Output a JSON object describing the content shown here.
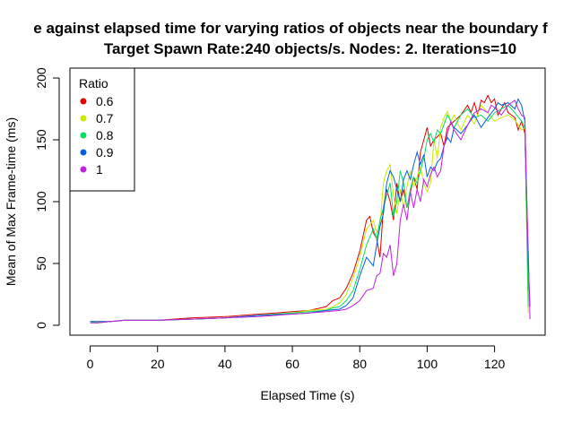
{
  "chart_data": {
    "type": "line",
    "title_line1": "e against elapsed time for varying ratios of objects near the boundary f",
    "title_line2": "Target Spawn Rate:240 objects/s. Nodes: 2. Iterations=10",
    "xlabel": "Elapsed Time (s)",
    "ylabel": "Mean of Max Frame-time (ms)",
    "xlim": [
      -6,
      135
    ],
    "ylim": [
      -8,
      208
    ],
    "xticks": [
      "0",
      "20",
      "40",
      "60",
      "80",
      "100",
      "120"
    ],
    "yticks": [
      "0",
      "50",
      "100",
      "150",
      "200"
    ],
    "legend": {
      "title": "Ratio",
      "position": "top-left"
    },
    "series": [
      {
        "name": "0.6",
        "color": "#e00000",
        "points": [
          [
            0,
            3
          ],
          [
            2,
            2
          ],
          [
            6,
            3
          ],
          [
            10,
            4
          ],
          [
            20,
            4
          ],
          [
            30,
            6
          ],
          [
            40,
            7
          ],
          [
            50,
            9
          ],
          [
            55,
            10
          ],
          [
            60,
            11
          ],
          [
            65,
            12
          ],
          [
            70,
            15
          ],
          [
            72,
            20
          ],
          [
            74,
            22
          ],
          [
            76,
            30
          ],
          [
            78,
            42
          ],
          [
            80,
            60
          ],
          [
            82,
            85
          ],
          [
            83,
            88
          ],
          [
            84,
            75
          ],
          [
            85,
            70
          ],
          [
            86,
            55
          ],
          [
            87,
            95
          ],
          [
            88,
            110
          ],
          [
            89,
            100
          ],
          [
            90,
            85
          ],
          [
            91,
            115
          ],
          [
            92,
            100
          ],
          [
            93,
            110
          ],
          [
            94,
            95
          ],
          [
            96,
            120
          ],
          [
            97,
            110
          ],
          [
            98,
            140
          ],
          [
            99,
            150
          ],
          [
            100,
            160
          ],
          [
            101,
            145
          ],
          [
            102,
            150
          ],
          [
            104,
            155
          ],
          [
            105,
            145
          ],
          [
            106,
            160
          ],
          [
            108,
            165
          ],
          [
            110,
            170
          ],
          [
            112,
            178
          ],
          [
            113,
            172
          ],
          [
            114,
            180
          ],
          [
            115,
            170
          ],
          [
            116,
            182
          ],
          [
            117,
            180
          ],
          [
            118,
            186
          ],
          [
            119,
            180
          ],
          [
            120,
            183
          ],
          [
            121,
            170
          ],
          [
            122,
            175
          ],
          [
            123,
            180
          ],
          [
            124,
            172
          ],
          [
            125,
            170
          ],
          [
            126,
            168
          ],
          [
            127,
            158
          ],
          [
            128,
            165
          ],
          [
            129,
            155
          ],
          [
            129.5,
            90
          ],
          [
            130,
            20
          ]
        ]
      },
      {
        "name": "0.7",
        "color": "#c8e800",
        "points": [
          [
            0,
            3
          ],
          [
            2,
            3
          ],
          [
            6,
            3
          ],
          [
            10,
            4
          ],
          [
            20,
            4
          ],
          [
            30,
            5
          ],
          [
            40,
            6
          ],
          [
            50,
            8
          ],
          [
            60,
            10
          ],
          [
            65,
            12
          ],
          [
            70,
            13
          ],
          [
            72,
            15
          ],
          [
            74,
            18
          ],
          [
            76,
            25
          ],
          [
            78,
            38
          ],
          [
            80,
            55
          ],
          [
            82,
            78
          ],
          [
            84,
            85
          ],
          [
            85,
            75
          ],
          [
            86,
            80
          ],
          [
            87,
            115
          ],
          [
            88,
            125
          ],
          [
            89,
            130
          ],
          [
            90,
            105
          ],
          [
            91,
            90
          ],
          [
            92,
            110
          ],
          [
            93,
            95
          ],
          [
            94,
            112
          ],
          [
            95,
            125
          ],
          [
            96,
            112
          ],
          [
            97,
            120
          ],
          [
            98,
            128
          ],
          [
            99,
            115
          ],
          [
            100,
            108
          ],
          [
            101,
            115
          ],
          [
            102,
            150
          ],
          [
            103,
            135
          ],
          [
            104,
            160
          ],
          [
            105,
            168
          ],
          [
            106,
            173
          ],
          [
            107,
            165
          ],
          [
            108,
            170
          ],
          [
            110,
            158
          ],
          [
            112,
            170
          ],
          [
            114,
            163
          ],
          [
            116,
            178
          ],
          [
            117,
            175
          ],
          [
            118,
            172
          ],
          [
            120,
            165
          ],
          [
            122,
            168
          ],
          [
            124,
            170
          ],
          [
            126,
            166
          ],
          [
            128,
            158
          ],
          [
            129,
            160
          ],
          [
            129.5,
            80
          ],
          [
            130,
            10
          ]
        ]
      },
      {
        "name": "0.8",
        "color": "#00e060",
        "points": [
          [
            0,
            3
          ],
          [
            2,
            2
          ],
          [
            6,
            3
          ],
          [
            10,
            4
          ],
          [
            20,
            4
          ],
          [
            30,
            5
          ],
          [
            40,
            6
          ],
          [
            50,
            8
          ],
          [
            60,
            10
          ],
          [
            65,
            11
          ],
          [
            70,
            12
          ],
          [
            72,
            14
          ],
          [
            74,
            15
          ],
          [
            76,
            20
          ],
          [
            78,
            28
          ],
          [
            80,
            45
          ],
          [
            82,
            65
          ],
          [
            84,
            78
          ],
          [
            85,
            70
          ],
          [
            86,
            85
          ],
          [
            87,
            95
          ],
          [
            88,
            105
          ],
          [
            89,
            115
          ],
          [
            90,
            88
          ],
          [
            91,
            100
          ],
          [
            92,
            125
          ],
          [
            93,
            115
          ],
          [
            94,
            95
          ],
          [
            95,
            110
          ],
          [
            96,
            120
          ],
          [
            97,
            115
          ],
          [
            98,
            125
          ],
          [
            99,
            135
          ],
          [
            100,
            150
          ],
          [
            101,
            155
          ],
          [
            102,
            148
          ],
          [
            103,
            158
          ],
          [
            104,
            155
          ],
          [
            106,
            170
          ],
          [
            108,
            160
          ],
          [
            110,
            170
          ],
          [
            112,
            175
          ],
          [
            114,
            168
          ],
          [
            116,
            170
          ],
          [
            118,
            165
          ],
          [
            120,
            172
          ],
          [
            122,
            175
          ],
          [
            124,
            178
          ],
          [
            126,
            172
          ],
          [
            128,
            165
          ],
          [
            129,
            160
          ],
          [
            129.5,
            90
          ],
          [
            130,
            15
          ]
        ]
      },
      {
        "name": "0.9",
        "color": "#0060e0",
        "points": [
          [
            0,
            3
          ],
          [
            2,
            3
          ],
          [
            6,
            3
          ],
          [
            10,
            4
          ],
          [
            20,
            4
          ],
          [
            30,
            5
          ],
          [
            40,
            6
          ],
          [
            50,
            8
          ],
          [
            60,
            9
          ],
          [
            65,
            10
          ],
          [
            70,
            12
          ],
          [
            74,
            13
          ],
          [
            76,
            16
          ],
          [
            78,
            22
          ],
          [
            80,
            40
          ],
          [
            82,
            55
          ],
          [
            84,
            48
          ],
          [
            85,
            65
          ],
          [
            86,
            80
          ],
          [
            87,
            90
          ],
          [
            88,
            115
          ],
          [
            89,
            125
          ],
          [
            90,
            120
          ],
          [
            91,
            110
          ],
          [
            92,
            100
          ],
          [
            93,
            118
          ],
          [
            94,
            125
          ],
          [
            95,
            118
          ],
          [
            96,
            130
          ],
          [
            97,
            140
          ],
          [
            98,
            130
          ],
          [
            99,
            138
          ],
          [
            100,
            120
          ],
          [
            101,
            128
          ],
          [
            102,
            125
          ],
          [
            103,
            132
          ],
          [
            104,
            135
          ],
          [
            105,
            145
          ],
          [
            106,
            152
          ],
          [
            107,
            148
          ],
          [
            108,
            160
          ],
          [
            110,
            155
          ],
          [
            112,
            162
          ],
          [
            114,
            170
          ],
          [
            116,
            160
          ],
          [
            118,
            168
          ],
          [
            120,
            175
          ],
          [
            121,
            180
          ],
          [
            122,
            178
          ],
          [
            124,
            180
          ],
          [
            126,
            175
          ],
          [
            127,
            183
          ],
          [
            128,
            178
          ],
          [
            129,
            165
          ],
          [
            129.5,
            110
          ],
          [
            130,
            50
          ],
          [
            130.5,
            15
          ]
        ]
      },
      {
        "name": "1",
        "color": "#c020e0",
        "points": [
          [
            0,
            2
          ],
          [
            2,
            2
          ],
          [
            6,
            3
          ],
          [
            10,
            4
          ],
          [
            20,
            4
          ],
          [
            30,
            5
          ],
          [
            40,
            6
          ],
          [
            50,
            7
          ],
          [
            60,
            9
          ],
          [
            65,
            10
          ],
          [
            70,
            11
          ],
          [
            74,
            12
          ],
          [
            76,
            13
          ],
          [
            78,
            16
          ],
          [
            80,
            20
          ],
          [
            82,
            28
          ],
          [
            84,
            30
          ],
          [
            85,
            40
          ],
          [
            86,
            42
          ],
          [
            87,
            58
          ],
          [
            88,
            55
          ],
          [
            89,
            65
          ],
          [
            90,
            40
          ],
          [
            91,
            50
          ],
          [
            92,
            85
          ],
          [
            93,
            98
          ],
          [
            94,
            85
          ],
          [
            95,
            108
          ],
          [
            96,
            95
          ],
          [
            97,
            110
          ],
          [
            98,
            100
          ],
          [
            99,
            118
          ],
          [
            100,
            112
          ],
          [
            101,
            122
          ],
          [
            102,
            128
          ],
          [
            103,
            120
          ],
          [
            104,
            125
          ],
          [
            105,
            145
          ],
          [
            106,
            155
          ],
          [
            107,
            165
          ],
          [
            108,
            158
          ],
          [
            110,
            150
          ],
          [
            112,
            162
          ],
          [
            114,
            172
          ],
          [
            116,
            175
          ],
          [
            118,
            172
          ],
          [
            119,
            178
          ],
          [
            120,
            176
          ],
          [
            122,
            170
          ],
          [
            124,
            178
          ],
          [
            126,
            182
          ],
          [
            127,
            175
          ],
          [
            128,
            170
          ],
          [
            129,
            168
          ],
          [
            129.5,
            105
          ],
          [
            130,
            60
          ],
          [
            130.5,
            5
          ]
        ]
      }
    ]
  }
}
